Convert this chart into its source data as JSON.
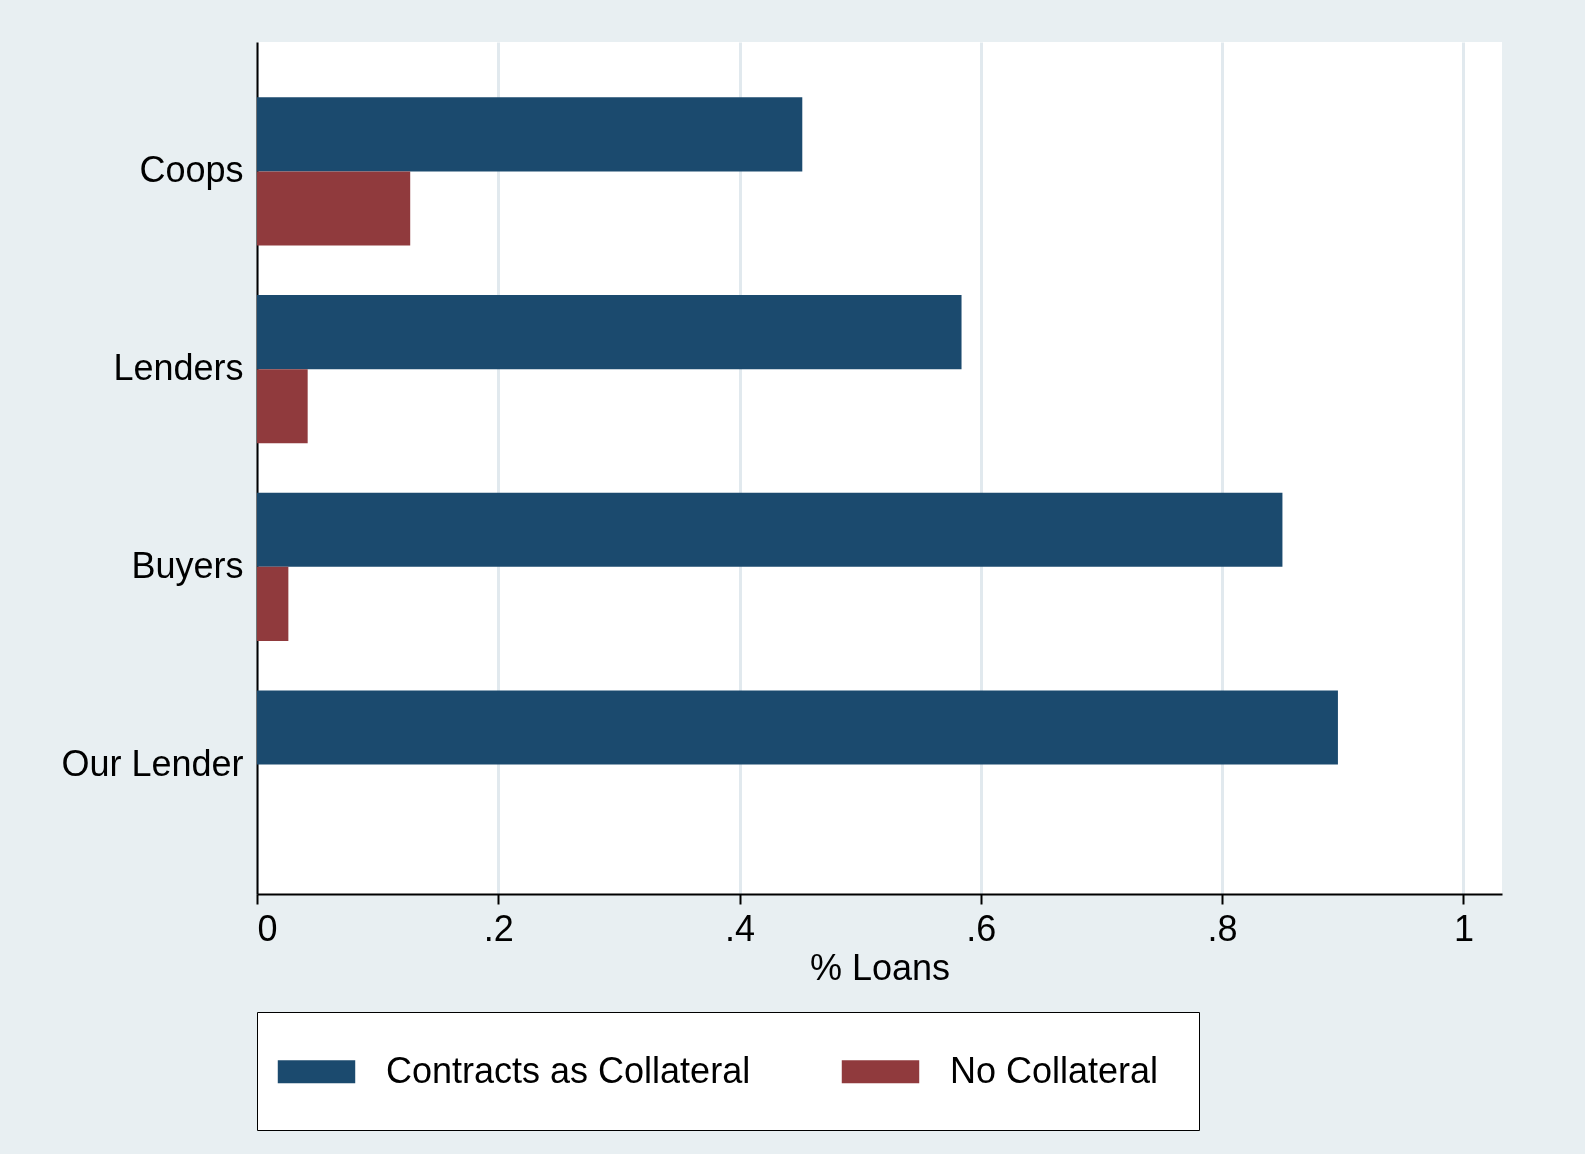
{
  "chart_data": {
    "type": "bar",
    "orientation": "horizontal",
    "categories": [
      "Coops",
      "Lenders",
      "Buyers",
      "Our Lender"
    ],
    "series": [
      {
        "name": "Contracts as Collateral",
        "color": "#1b4a6e",
        "values": [
          0.452,
          0.584,
          0.85,
          0.896
        ]
      },
      {
        "name": "No Collateral",
        "color": "#903a3d",
        "values": [
          0.127,
          0.042,
          0.026,
          null
        ]
      }
    ],
    "xlabel": "% Loans",
    "xlim": [
      0,
      1.032
    ],
    "xticks": [
      0,
      {
        "value": 0.2,
        "label": ".2"
      },
      {
        "value": 0.4,
        "label": ".4"
      },
      {
        "value": 0.6,
        "label": ".6"
      },
      {
        "value": 0.8,
        "label": ".8"
      },
      1
    ],
    "grid": "x",
    "legend": "bottom"
  }
}
